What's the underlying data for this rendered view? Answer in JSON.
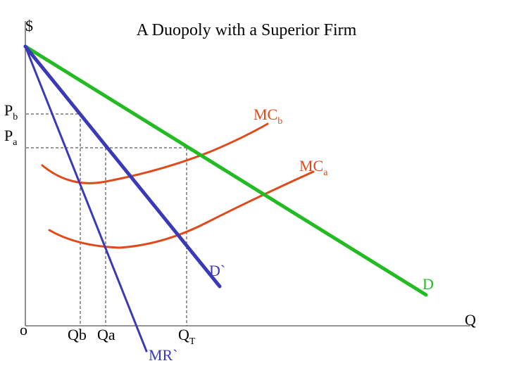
{
  "title": "A Duopoly with a Superior Firm",
  "axes": {
    "y_label": "$",
    "x_label": "Q",
    "origin_label": "o"
  },
  "price_labels": {
    "pb": {
      "main": "P",
      "sub": "b"
    },
    "pa": {
      "main": "P",
      "sub": "a"
    }
  },
  "quantity_labels": {
    "qb": "Qb",
    "qa": "Qa",
    "qt": {
      "main": "Q",
      "sub": "T"
    }
  },
  "curves": {
    "demand": {
      "label": "D",
      "color": "#22bb22"
    },
    "residual_demand": {
      "label": "D`",
      "color": "#3a3ab8"
    },
    "marginal_revenue": {
      "label": "MR`",
      "color": "#3a3ab8"
    },
    "mc_b": {
      "label": {
        "main": "MC",
        "sub": "b"
      },
      "color": "#e04a1a"
    },
    "mc_a": {
      "label": {
        "main": "MC",
        "sub": "a"
      },
      "color": "#e04a1a"
    }
  },
  "colors": {
    "axis": "#555555",
    "guide": "#333333",
    "text": "#000000"
  }
}
